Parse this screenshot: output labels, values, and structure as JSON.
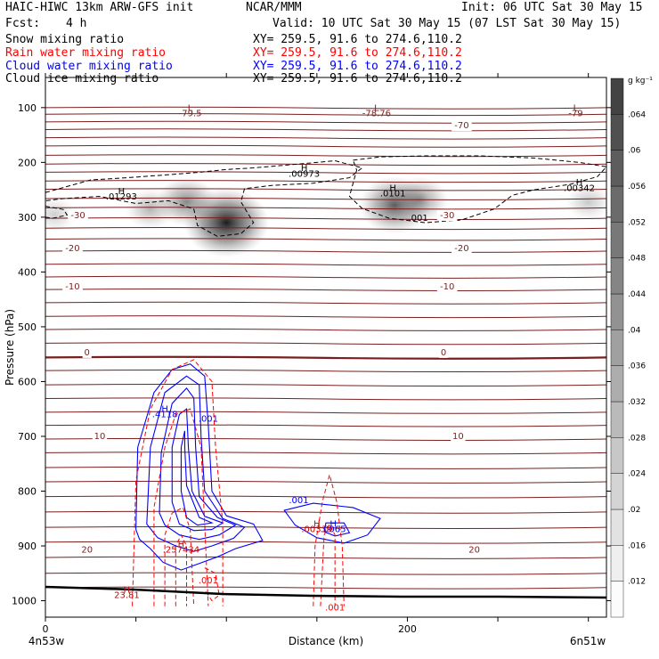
{
  "header": {
    "title": "HAIC-HIWC 13km ARW-GFS init",
    "org": "NCAR/MMM",
    "init": "Init: 06 UTC Sat 30 May 15",
    "fcst_label": "Fcst:",
    "fcst_value": "4 h",
    "valid": "Valid: 10 UTC Sat 30 May 15 (07 LST Sat 30 May 15)"
  },
  "fields": [
    {
      "name": "Snow mixing ratio",
      "color": "#000000",
      "xy": "XY= 259.5, 91.6 to 274.6,110.2"
    },
    {
      "name": "Rain water mixing ratio",
      "color": "#ff0000",
      "xy": "XY= 259.5, 91.6 to 274.6,110.2"
    },
    {
      "name": "Cloud water mixing ratio",
      "color": "#0000ff",
      "xy": "XY= 259.5, 91.6 to 274.6,110.2"
    },
    {
      "name": "Cloud ice mixing ratio",
      "color": "#000000",
      "xy": "XY= 259.5, 91.6 to 274.6,110.2"
    }
  ],
  "chart_data": {
    "type": "cross-section",
    "xlabel": "Distance (km)",
    "ylabel": "Pressure (hPa)",
    "x_ticks": [
      "0",
      "200"
    ],
    "x_tick_values": [
      0,
      200
    ],
    "xlim": [
      0,
      310
    ],
    "y_ticks": [
      "100",
      "200",
      "300",
      "400",
      "500",
      "600",
      "700",
      "800",
      "900",
      "1000"
    ],
    "y_tick_values": [
      100,
      200,
      300,
      400,
      500,
      600,
      700,
      800,
      900,
      1000
    ],
    "ylim": [
      45,
      1030
    ],
    "endpoint_left": "4n53w",
    "endpoint_right": "6n51w",
    "colorbar": {
      "unit": "g kg⁻¹",
      "labels": [
        ".012",
        ".016",
        ".02",
        ".024",
        ".028",
        ".032",
        ".036",
        ".04",
        ".044",
        ".048",
        ".052",
        ".056",
        ".06",
        ".064"
      ],
      "values": [
        0.012,
        0.016,
        0.02,
        0.024,
        0.028,
        0.032,
        0.036,
        0.04,
        0.044,
        0.048,
        0.052,
        0.056,
        0.06,
        0.064
      ]
    },
    "temperature_contour_labels": [
      {
        "text": "-70",
        "x": 230,
        "p": 138
      },
      {
        "text": "-30",
        "x": 18,
        "p": 302
      },
      {
        "text": "-30",
        "x": 222,
        "p": 302
      },
      {
        "text": "-20",
        "x": 15,
        "p": 362
      },
      {
        "text": "-20",
        "x": 230,
        "p": 362
      },
      {
        "text": "-10",
        "x": 15,
        "p": 432
      },
      {
        "text": "-10",
        "x": 222,
        "p": 432
      },
      {
        "text": "0",
        "x": 23,
        "p": 552
      },
      {
        "text": "0",
        "x": 220,
        "p": 552
      },
      {
        "text": "10",
        "x": 30,
        "p": 705
      },
      {
        "text": "10",
        "x": 228,
        "p": 705
      },
      {
        "text": "20",
        "x": 23,
        "p": 912
      },
      {
        "text": "20",
        "x": 237,
        "p": 912
      }
    ],
    "temperature_extrema": [
      {
        "marker": "L",
        "value": "-79.5",
        "x": 80,
        "p": 106
      },
      {
        "marker": "L",
        "value": "-78.76",
        "x": 183,
        "p": 106
      },
      {
        "marker": "L",
        "value": "-79",
        "x": 293,
        "p": 106
      }
    ],
    "snow_maxima": [
      {
        "value": ".01293",
        "x": 42,
        "p": 268
      },
      {
        "value": ".00973",
        "x": 143,
        "p": 226
      },
      {
        "value": ".0101",
        "x": 192,
        "p": 262
      },
      {
        "value": ".00342",
        "x": 295,
        "p": 252
      }
    ],
    "cloud_ice_labels": [
      {
        "text": ".001",
        "x": 206,
        "p": 307
      }
    ],
    "cloud_water_labels": [
      {
        "marker": "H",
        "value": ".4118",
        "x": 66,
        "p": 665
      },
      {
        "text": ".001",
        "x": 90,
        "p": 673
      },
      {
        "text": ".001",
        "x": 140,
        "p": 822
      },
      {
        "marker": "H",
        "value": ".0065",
        "x": 159,
        "p": 875
      }
    ],
    "rain_labels": [
      {
        "marker": "H",
        "value": ".257434",
        "x": 75,
        "p": 912
      },
      {
        "marker": "H",
        "value": ".00339",
        "x": 150,
        "p": 875
      },
      {
        "marker": "H",
        "value": "23.81",
        "x": 45,
        "p": 995
      },
      {
        "text": ".001",
        "x": 90,
        "p": 968
      },
      {
        "text": ".001",
        "x": 160,
        "p": 1018
      }
    ],
    "snow_blobs": [
      {
        "x": 100,
        "p": 310,
        "value": 0.066
      },
      {
        "x": 78,
        "p": 272,
        "value": 0.035
      },
      {
        "x": 58,
        "p": 285,
        "value": 0.022
      },
      {
        "x": 193,
        "p": 278,
        "value": 0.048
      },
      {
        "x": 207,
        "p": 268,
        "value": 0.03
      },
      {
        "x": 300,
        "p": 272,
        "value": 0.016
      },
      {
        "x": 5,
        "p": 295,
        "value": 0.014
      }
    ]
  }
}
